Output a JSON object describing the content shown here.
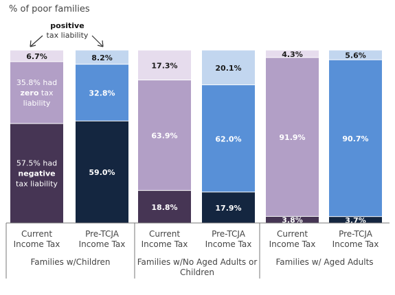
{
  "chart_data": {
    "type": "bar",
    "stacked": true,
    "normalized_to": 100,
    "ylabel": "% of poor families",
    "groups": [
      {
        "label": "Families w/Children",
        "bars": [
          {
            "label_line1": "Current",
            "label_line2": "Income Tax",
            "scheme": "current",
            "segments": [
              {
                "kind": "negative",
                "value": 57.5,
                "lines": [
                  "57.5% had",
                  "negative",
                  "tax liability"
                ],
                "bold_line": 1
              },
              {
                "kind": "zero",
                "value": 35.8,
                "lines": [
                  "35.8% had",
                  "zero tax",
                  "liability"
                ],
                "bold_word": "zero"
              },
              {
                "kind": "positive",
                "value": 6.7,
                "lines": [
                  "6.7%"
                ]
              }
            ]
          },
          {
            "label_line1": "Pre-TCJA",
            "label_line2": "Income Tax",
            "scheme": "pre",
            "segments": [
              {
                "kind": "negative",
                "value": 59.0,
                "lines": [
                  "59.0%"
                ]
              },
              {
                "kind": "zero",
                "value": 32.8,
                "lines": [
                  "32.8%"
                ]
              },
              {
                "kind": "positive",
                "value": 8.2,
                "lines": [
                  "8.2%"
                ]
              }
            ]
          }
        ]
      },
      {
        "label_line1": "Families w/No Aged Adults or",
        "label_line2": "Children",
        "bars": [
          {
            "label_line1": "Current",
            "label_line2": "Income Tax",
            "scheme": "current",
            "segments": [
              {
                "kind": "negative",
                "value": 18.8,
                "lines": [
                  "18.8%"
                ]
              },
              {
                "kind": "zero",
                "value": 63.9,
                "lines": [
                  "63.9%"
                ]
              },
              {
                "kind": "positive",
                "value": 17.3,
                "lines": [
                  "17.3%"
                ]
              }
            ]
          },
          {
            "label_line1": "Pre-TCJA",
            "label_line2": "Income Tax",
            "scheme": "pre",
            "segments": [
              {
                "kind": "negative",
                "value": 17.9,
                "lines": [
                  "17.9%"
                ]
              },
              {
                "kind": "zero",
                "value": 62.0,
                "lines": [
                  "62.0%"
                ]
              },
              {
                "kind": "positive",
                "value": 20.1,
                "lines": [
                  "20.1%"
                ]
              }
            ]
          }
        ]
      },
      {
        "label": "Families w/ Aged Adults",
        "bars": [
          {
            "label_line1": "Current",
            "label_line2": "Income Tax",
            "scheme": "current",
            "segments": [
              {
                "kind": "negative",
                "value": 3.8,
                "lines": [
                  "3.8%"
                ]
              },
              {
                "kind": "zero",
                "value": 91.9,
                "lines": [
                  "91.9%"
                ]
              },
              {
                "kind": "positive",
                "value": 4.3,
                "lines": [
                  "4.3%"
                ]
              }
            ]
          },
          {
            "label_line1": "Pre-TCJA",
            "label_line2": "Income Tax",
            "scheme": "pre",
            "segments": [
              {
                "kind": "negative",
                "value": 3.7,
                "lines": [
                  "3.7%"
                ]
              },
              {
                "kind": "zero",
                "value": 90.7,
                "lines": [
                  "90.7%"
                ]
              },
              {
                "kind": "positive",
                "value": 5.6,
                "lines": [
                  "5.6%"
                ]
              }
            ]
          }
        ]
      }
    ],
    "annotation": {
      "line1": "positive",
      "line2": "tax liability"
    },
    "colors": {
      "current": {
        "negative": "#463554",
        "zero": "#b29fc6",
        "positive": "#e6dced"
      },
      "pre": {
        "negative": "#142640",
        "zero": "#5890d7",
        "positive": "#c2d6ef"
      },
      "label_dark": "#ffffff",
      "label_light": "#1a1a1a"
    }
  }
}
